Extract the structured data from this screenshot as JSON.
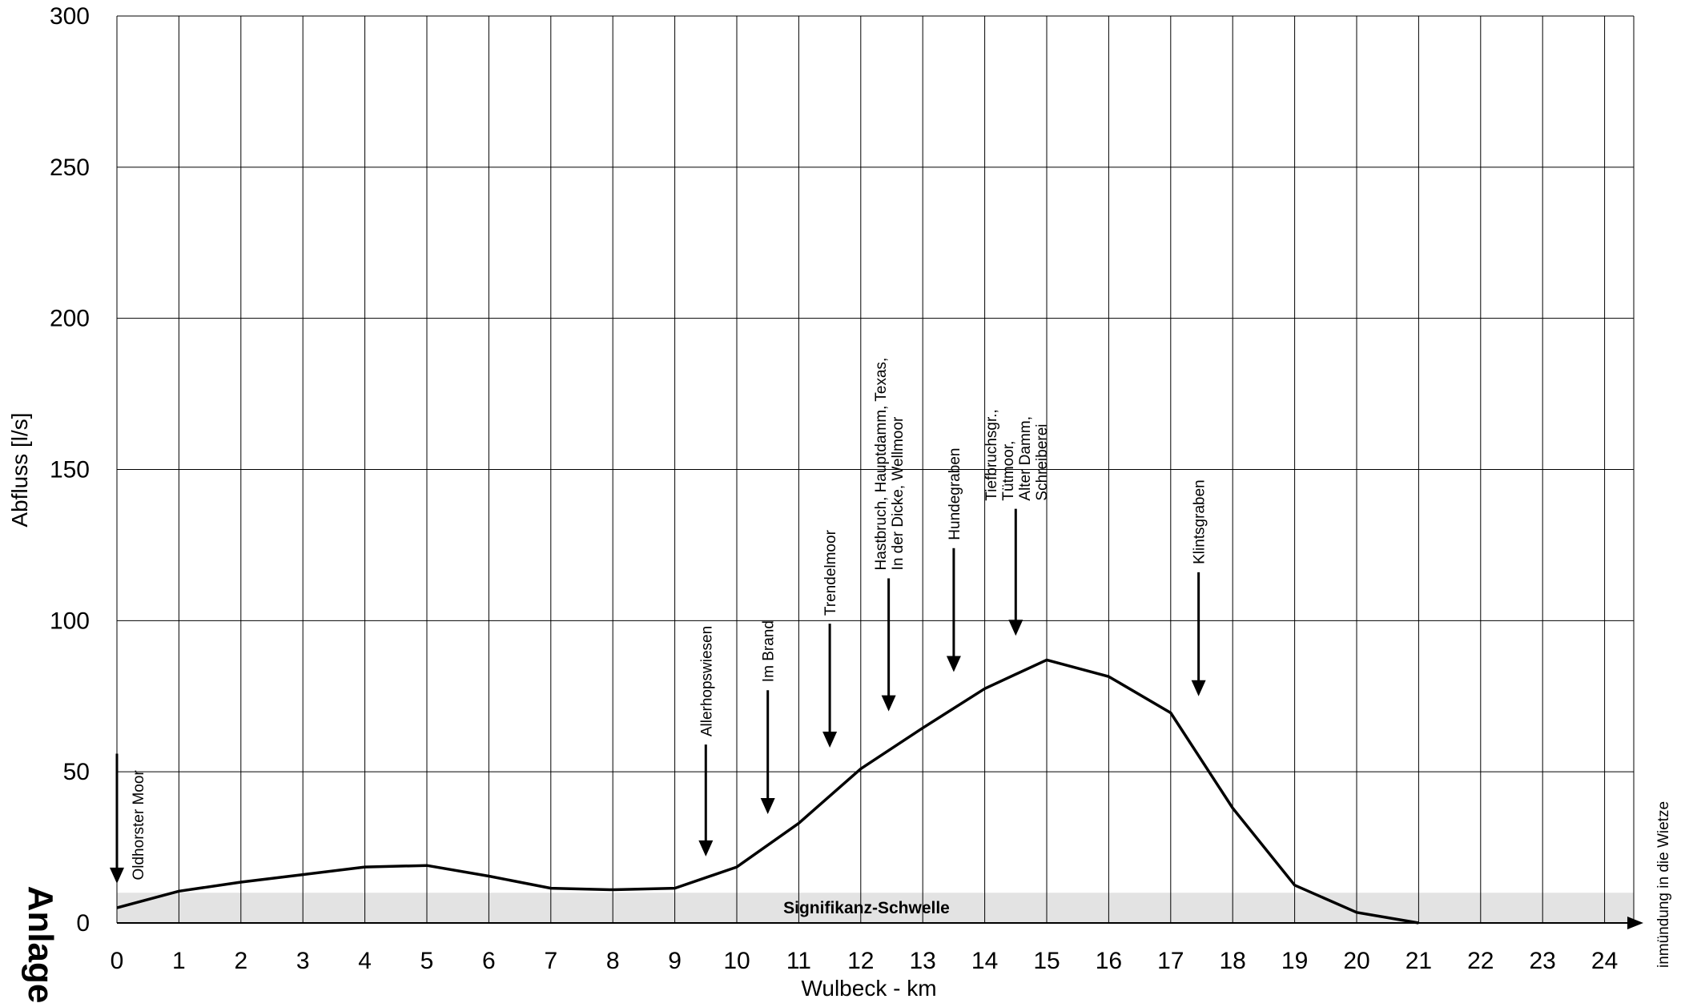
{
  "chart_data": {
    "type": "line",
    "title": "",
    "xlabel": "Wulbeck - km",
    "ylabel": "Abfluss [l/s]",
    "xlim": [
      0,
      24.4
    ],
    "ylim": [
      0,
      300
    ],
    "x_ticks": [
      "0",
      "1",
      "2",
      "3",
      "4",
      "5",
      "6",
      "7",
      "8",
      "9",
      "10",
      "11",
      "12",
      "13",
      "14",
      "15",
      "16",
      "17",
      "18",
      "19",
      "20",
      "21",
      "22",
      "23",
      "24"
    ],
    "y_ticks": [
      "0",
      "50",
      "100",
      "150",
      "200",
      "250",
      "300"
    ],
    "grid": true,
    "series": [
      {
        "x": [
          0,
          1,
          2,
          3,
          4,
          5,
          6,
          7,
          8,
          9,
          10,
          11,
          12,
          13,
          14,
          15,
          16,
          17,
          18,
          19,
          20,
          21
        ],
        "values": [
          5,
          10.5,
          13.5,
          16,
          18.5,
          19,
          15.5,
          11.5,
          11,
          11.5,
          18.5,
          33,
          51,
          64.5,
          77.5,
          87,
          81.5,
          69.5,
          38,
          12.5,
          3.5,
          0
        ]
      }
    ],
    "threshold": {
      "label": "Signifikanz-Schwelle",
      "value": 10
    },
    "annotations": [
      {
        "lines": [
          "Oldhorster Moor"
        ],
        "x": 0,
        "y_tip": 13,
        "y_tail": 56
      },
      {
        "lines": [
          "Allerhopswiesen"
        ],
        "x": 9.5,
        "y_tip": 22,
        "y_tail": 59
      },
      {
        "lines": [
          "Im Brand"
        ],
        "x": 10.5,
        "y_tip": 36,
        "y_tail": 77
      },
      {
        "lines": [
          "Trendelmoor"
        ],
        "x": 11.5,
        "y_tip": 58,
        "y_tail": 99
      },
      {
        "lines": [
          "Hastbruch, Hauptdamm, Texas,",
          "In der Dicke, Wellmoor"
        ],
        "x": 12.45,
        "y_tip": 70,
        "y_tail": 114
      },
      {
        "lines": [
          "Hundegraben"
        ],
        "x": 13.5,
        "y_tip": 83,
        "y_tail": 124
      },
      {
        "lines": [
          "Tiefbruchsgr.,",
          "Tütmoor,",
          "Alter Damm,",
          "Schreiberei"
        ],
        "x": 14.5,
        "y_tip": 95,
        "y_tail": 137
      },
      {
        "lines": [
          "Klintsgraben"
        ],
        "x": 17.45,
        "y_tip": 75,
        "y_tail": 116
      }
    ],
    "side_label": "Anlage",
    "x_arrow_label": "inmündung in die Wietze",
    "colors": {
      "line": "#000000",
      "grid": "#000000",
      "band": "#e3e3e3"
    }
  }
}
